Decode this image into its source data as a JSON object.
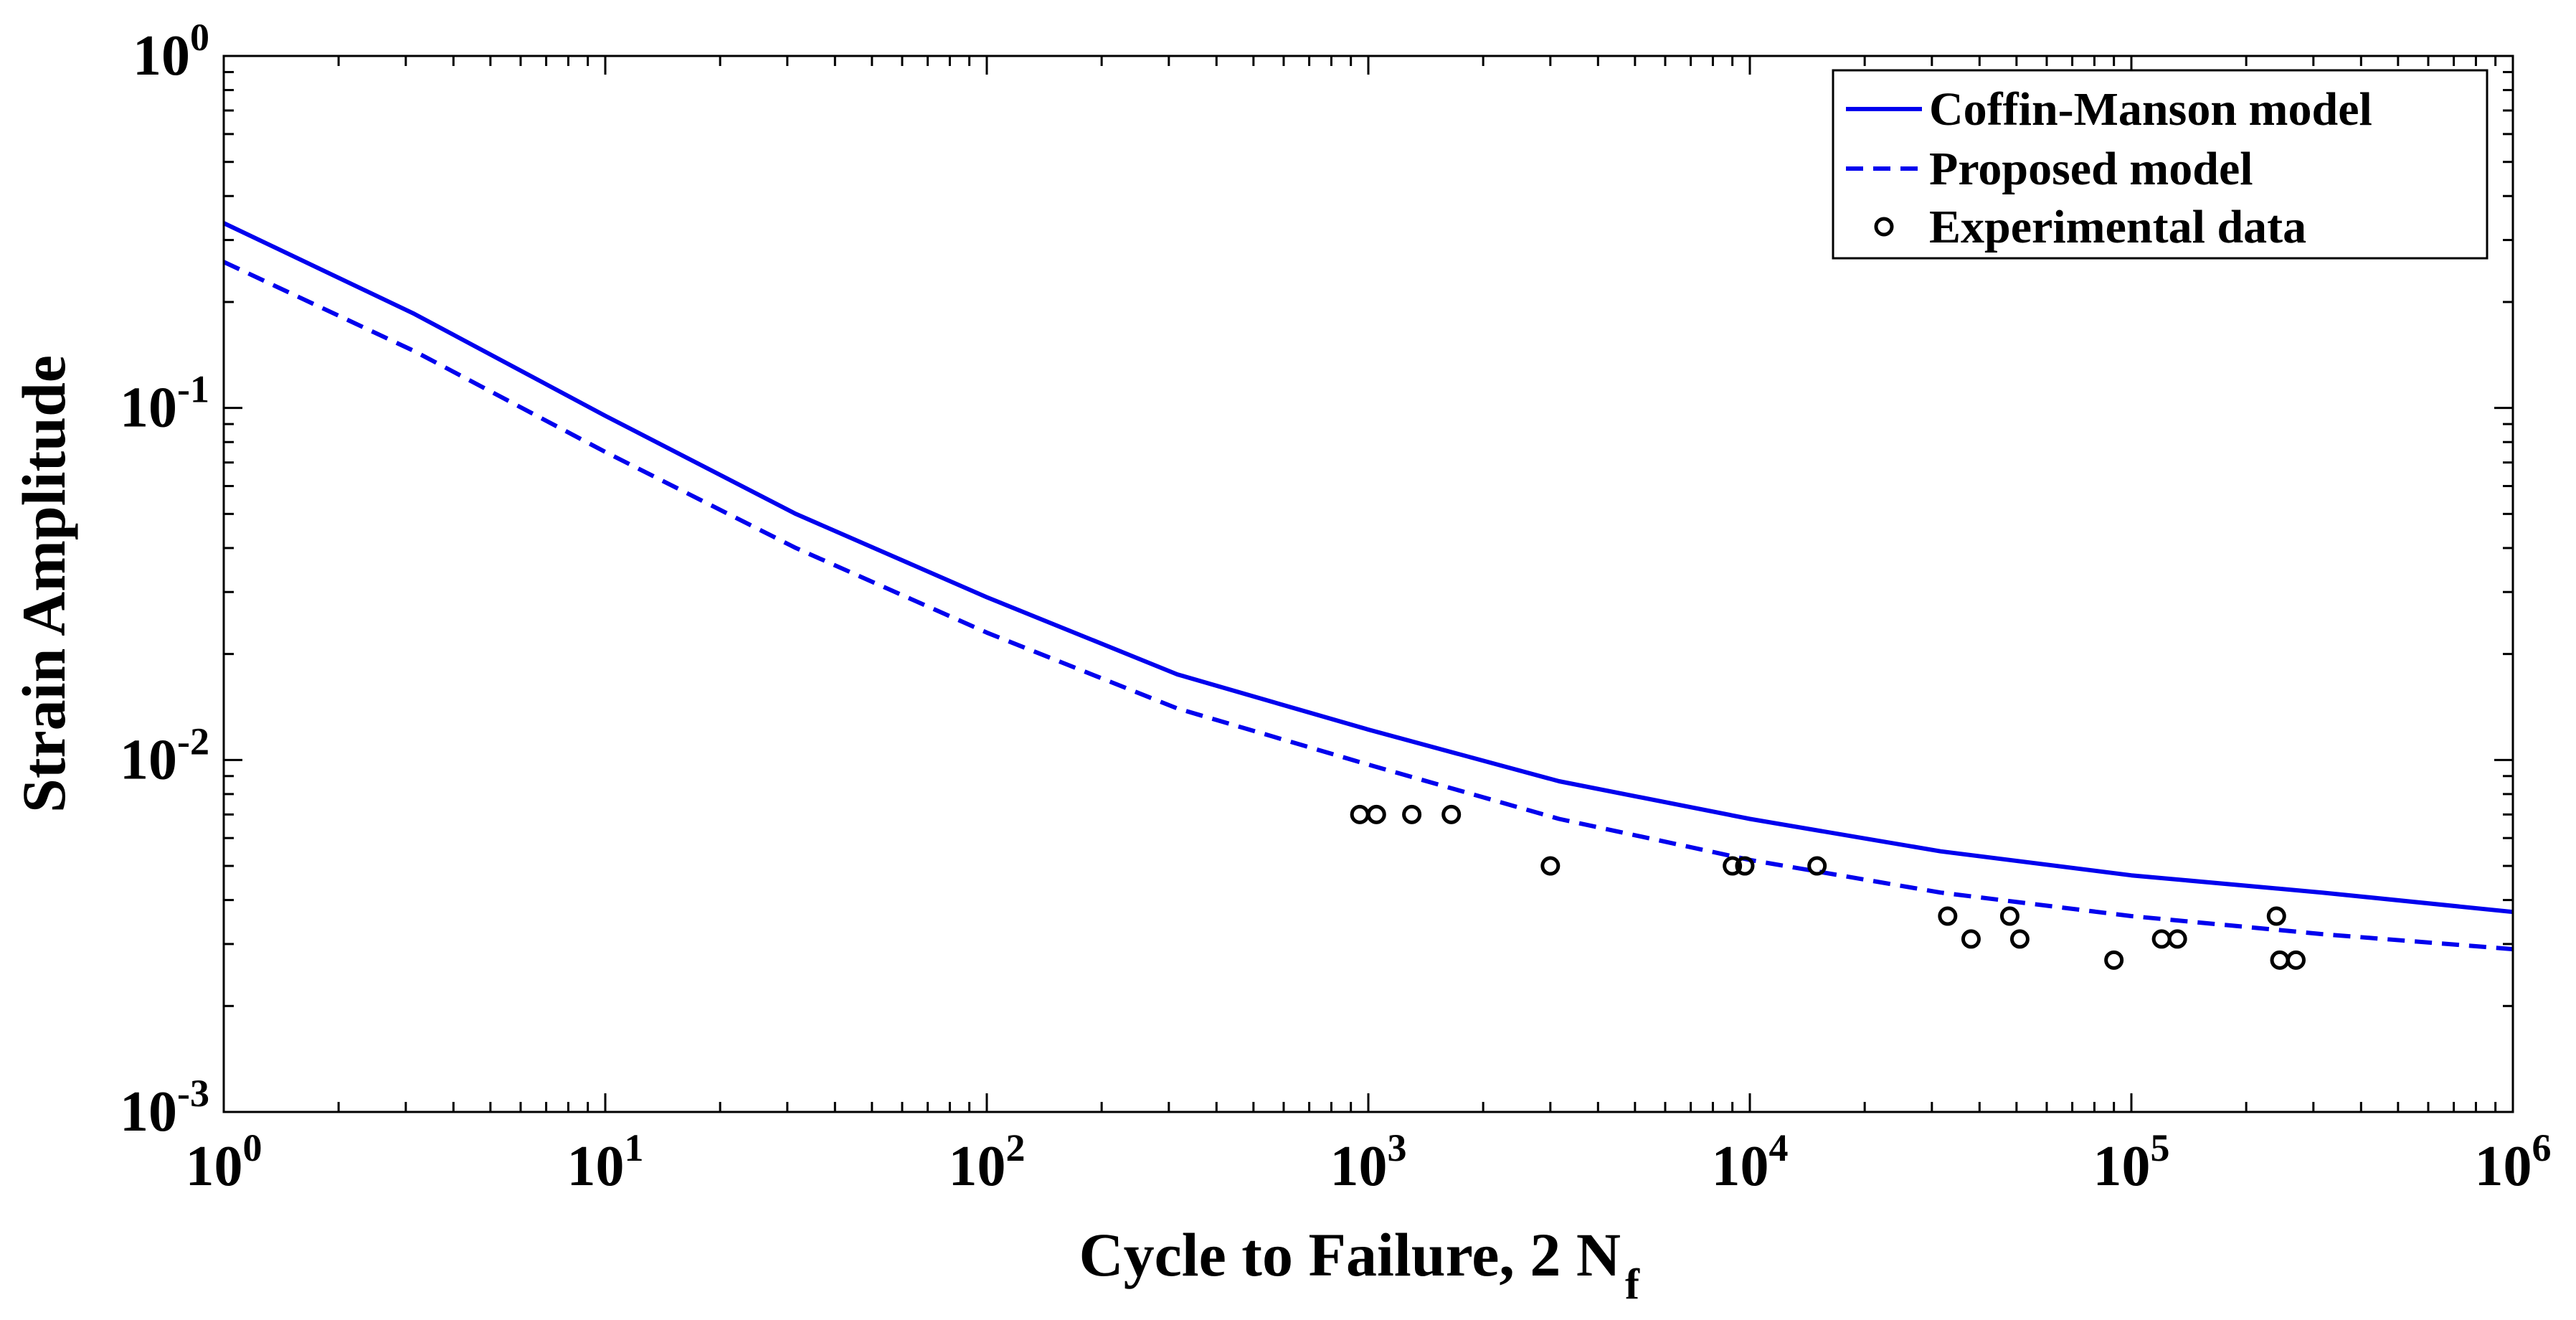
{
  "chart_data": {
    "type": "line",
    "title": "",
    "xlabel": "Cycle to Failure, 2 N",
    "xlabel_subscript": "f",
    "ylabel": "Strain Amplitude",
    "xscale": "log",
    "yscale": "log",
    "xlim": [
      1,
      1000000
    ],
    "ylim": [
      0.001,
      1
    ],
    "grid": false,
    "legend_position": "top-right",
    "x_ticks": [
      {
        "base": "10",
        "exp": "0"
      },
      {
        "base": "10",
        "exp": "1"
      },
      {
        "base": "10",
        "exp": "2"
      },
      {
        "base": "10",
        "exp": "3"
      },
      {
        "base": "10",
        "exp": "4"
      },
      {
        "base": "10",
        "exp": "5"
      },
      {
        "base": "10",
        "exp": "6"
      }
    ],
    "y_ticks": [
      {
        "base": "10",
        "exp": "-3"
      },
      {
        "base": "10",
        "exp": "-2"
      },
      {
        "base": "10",
        "exp": "-1"
      },
      {
        "base": "10",
        "exp": "0"
      }
    ],
    "series": [
      {
        "name": "Coffin-Manson model",
        "style": "solid",
        "color": "#0000ee",
        "x": [
          1,
          3.16,
          10,
          31.6,
          100,
          316,
          1000,
          3162,
          10000,
          31623,
          100000,
          316228,
          1000000
        ],
        "y": [
          0.335,
          0.185,
          0.095,
          0.05,
          0.029,
          0.0175,
          0.0122,
          0.0087,
          0.0068,
          0.0055,
          0.0047,
          0.0042,
          0.0037
        ]
      },
      {
        "name": "Proposed model",
        "style": "dashed",
        "color": "#0000ee",
        "x": [
          1,
          3.16,
          10,
          31.6,
          100,
          316,
          1000,
          3162,
          10000,
          31623,
          100000,
          316228,
          1000000
        ],
        "y": [
          0.26,
          0.145,
          0.075,
          0.04,
          0.023,
          0.014,
          0.0097,
          0.0068,
          0.0052,
          0.0042,
          0.0036,
          0.0032,
          0.0029
        ]
      },
      {
        "name": "Experimental data",
        "style": "markers",
        "color": "#000000",
        "x": [
          950,
          1050,
          1300,
          1650,
          3000,
          9000,
          9700,
          15000,
          33000,
          38000,
          48000,
          51000,
          90000,
          120000,
          132000,
          240000,
          245000,
          270000
        ],
        "y": [
          0.007,
          0.007,
          0.007,
          0.007,
          0.005,
          0.005,
          0.005,
          0.005,
          0.0036,
          0.0031,
          0.0036,
          0.0031,
          0.0027,
          0.0031,
          0.0031,
          0.0036,
          0.0027,
          0.0027
        ]
      }
    ]
  }
}
